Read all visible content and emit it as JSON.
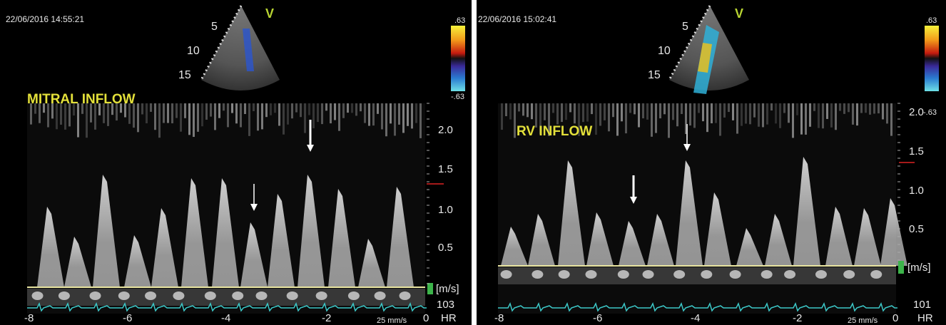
{
  "panels": [
    {
      "timestamp": "22/06/2016 14:55:21",
      "view": "V",
      "depth_labels": [
        "5",
        "10",
        "15"
      ],
      "color_scale": {
        "max": ".63",
        "min": "-.63"
      },
      "title": "MITRAL INFLOW",
      "velocity_labels": [
        "2.0",
        "1.5",
        "1.0",
        "0.5"
      ],
      "velocity_unit": "[m/s]",
      "time_labels": [
        "-8",
        "-6",
        "-4",
        "-2",
        "0"
      ],
      "sweep_speed": "25 mm/s",
      "heart_rate": "103",
      "heart_rate_label": "HR"
    },
    {
      "timestamp": "22/06/2016 15:02:41",
      "view": "V",
      "depth_labels": [
        "5",
        "10",
        "15"
      ],
      "color_scale": {
        "max": ".63",
        "min": "-.63"
      },
      "title": "RV INFLOW",
      "velocity_labels": [
        "2.0",
        "1.5",
        "1.0",
        "0.5"
      ],
      "velocity_unit": "[m/s]",
      "time_labels": [
        "-8",
        "-6",
        "-4",
        "-2",
        "0"
      ],
      "sweep_speed": "25 mm/s",
      "heart_rate": "101",
      "heart_rate_label": "HR"
    }
  ]
}
